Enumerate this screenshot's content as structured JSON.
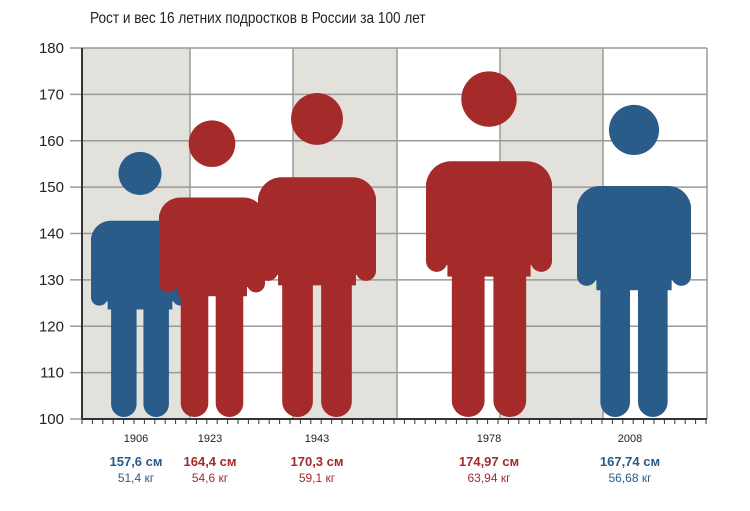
{
  "chart_data": {
    "type": "bar",
    "title": "Рост и вес 16 летних подростков в России за 100 лет",
    "ylim": [
      100,
      180
    ],
    "yticks": [
      100,
      110,
      120,
      130,
      140,
      150,
      160,
      170,
      180
    ],
    "grid": true,
    "series": [
      {
        "values": [
          157.6,
          164.4,
          170.3,
          174.97,
          167.74
        ],
        "weights": [
          51.4,
          54.6,
          59.1,
          63.94,
          56.68
        ]
      }
    ],
    "categories": [
      "1906",
      "1923",
      "1943",
      "1978",
      "2008"
    ],
    "height_labels": [
      "157,6 см",
      "164,4 см",
      "170,3 см",
      "174,97 см",
      "167,74 см"
    ],
    "weight_labels": [
      "51,4 кг",
      "54,6 кг",
      "59,1 кг",
      "63,94 кг",
      "56,68 кг"
    ]
  },
  "colors": {
    "blue": "#2a5c8a",
    "red": "#a52a2a",
    "band": "#e2e1dc",
    "grid": "#9a9a9a"
  }
}
